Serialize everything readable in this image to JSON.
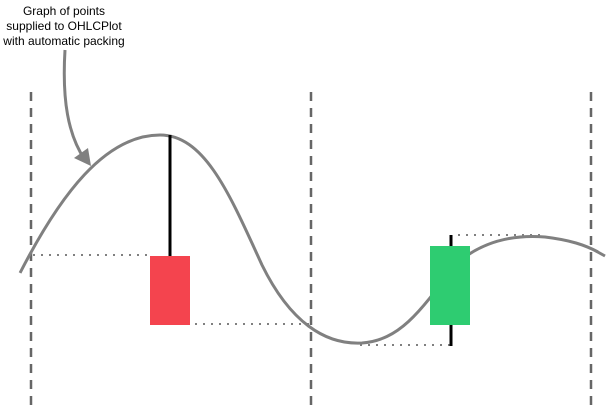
{
  "annotation": {
    "lines": [
      "Graph of points",
      "supplied to OHLCPlot",
      "with automatic packing"
    ]
  },
  "colors": {
    "curve": "#808080",
    "divider": "#666666",
    "dotted": "#808080",
    "bearish_candle": "#f4444e",
    "bullish_candle": "#2ecc71",
    "wick": "#000000",
    "arrow": "#808080",
    "text": "#000000"
  },
  "candles": [
    {
      "name": "bearish-candle",
      "direction": "down"
    },
    {
      "name": "bullish-candle",
      "direction": "up"
    }
  ]
}
